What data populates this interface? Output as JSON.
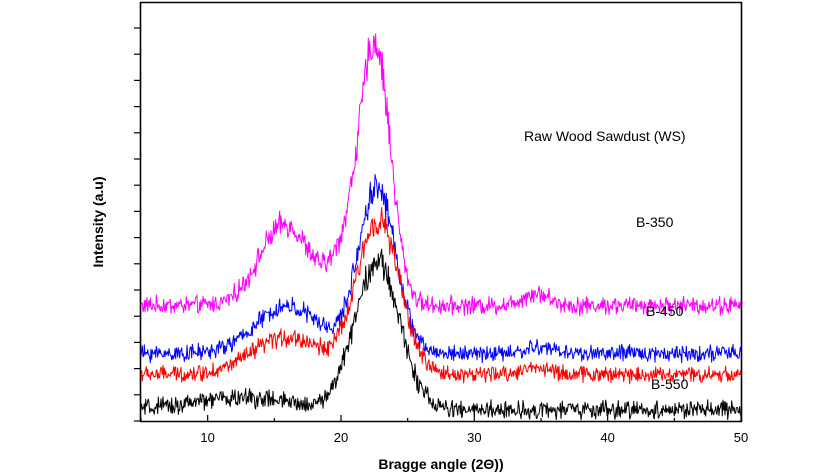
{
  "chart_data": {
    "type": "line",
    "title": "",
    "xlabel": "Bragge angle (2Θ))",
    "ylabel": "Intensity (a.u)",
    "xlim": [
      5,
      50
    ],
    "xticks": [
      10,
      20,
      30,
      40,
      50
    ],
    "grid": false,
    "legend": "inline labels at right",
    "series": [
      {
        "name": "Raw Wood Sawdust (WS)",
        "color": "#ff00ff",
        "baseline": 0.94,
        "peaks": [
          {
            "x": 15.8,
            "height": 0.66,
            "width": 1.9
          },
          {
            "x": 20.5,
            "height": 0.4,
            "width": 1.2
          },
          {
            "x": 22.6,
            "height": 2.05,
            "width": 1.15
          },
          {
            "x": 34.6,
            "height": 0.1,
            "width": 1.0
          }
        ],
        "noise": 0.11
      },
      {
        "name": "B-350",
        "color": "#0000ff",
        "baseline": 0.55,
        "peaks": [
          {
            "x": 16.0,
            "height": 0.38,
            "width": 2.4
          },
          {
            "x": 22.7,
            "height": 1.35,
            "width": 1.4
          },
          {
            "x": 35.0,
            "height": 0.05,
            "width": 1.0
          }
        ],
        "noise": 0.1
      },
      {
        "name": "B-450",
        "color": "#ff0000",
        "baseline": 0.38,
        "peaks": [
          {
            "x": 16.0,
            "height": 0.3,
            "width": 2.6
          },
          {
            "x": 22.8,
            "height": 1.25,
            "width": 1.6
          },
          {
            "x": 34.7,
            "height": 0.06,
            "width": 1.0
          }
        ],
        "noise": 0.1
      },
      {
        "name": "B-550",
        "color": "#000000",
        "baseline": 0.09,
        "peaks": [
          {
            "x": 12.5,
            "height": 0.1,
            "width": 3.5
          },
          {
            "x": 22.7,
            "height": 1.2,
            "width": 1.7
          }
        ],
        "noise": 0.11
      }
    ]
  }
}
